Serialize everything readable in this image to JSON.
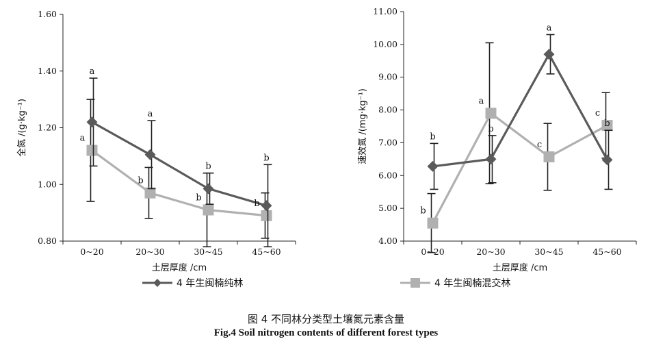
{
  "chart_data": [
    {
      "type": "line",
      "ylabel": "全氮 /(g·kg⁻¹)",
      "xlabel": "土层厚度 /cm",
      "categories": [
        "0~20",
        "20~30",
        "30~45",
        "45~60"
      ],
      "ylim": [
        0.8,
        1.6
      ],
      "yticks": [
        "0.80",
        "1.00",
        "1.20",
        "1.40",
        "1.60"
      ],
      "series": [
        {
          "name": "4 年生闽楠纯林",
          "color": "#5a5a5a",
          "marker": "diamond",
          "values": [
            1.22,
            1.105,
            0.985,
            0.925
          ],
          "err": [
            0.155,
            0.12,
            0.055,
            0.145
          ],
          "labels": [
            "a",
            "a",
            "b",
            "b"
          ]
        },
        {
          "name": "4 年生闽楠混交林",
          "color": "#b0b0b0",
          "marker": "square",
          "values": [
            1.12,
            0.97,
            0.91,
            0.89
          ],
          "err": [
            0.18,
            0.09,
            0.13,
            0.08
          ],
          "labels": [
            "a",
            "b",
            "b",
            "b"
          ]
        }
      ]
    },
    {
      "type": "line",
      "ylabel": "速效氮 /(mg·kg⁻¹)",
      "xlabel": "土层厚度 /cm",
      "categories": [
        "0~20",
        "20~30",
        "30~45",
        "45~60"
      ],
      "ylim": [
        4.0,
        11.0
      ],
      "yticks": [
        "4.00",
        "5.00",
        "6.00",
        "7.00",
        "8.00",
        "9.00",
        "10.00",
        "11.00"
      ],
      "series": [
        {
          "name": "4 年生闽楠纯林",
          "color": "#5a5a5a",
          "marker": "diamond",
          "values": [
            6.28,
            6.5,
            9.7,
            6.48
          ],
          "err": [
            0.7,
            0.72,
            0.6,
            0.9
          ],
          "labels": [
            "b",
            "b",
            "a",
            "b"
          ]
        },
        {
          "name": "4 年生闽楠混交林",
          "color": "#b0b0b0",
          "marker": "square",
          "values": [
            4.55,
            7.9,
            6.57,
            7.53
          ],
          "err": [
            0.9,
            2.15,
            1.02,
            1.0
          ],
          "labels": [
            "b",
            "a",
            "c",
            "c"
          ]
        }
      ]
    }
  ],
  "legend": {
    "pure": "4 年生闽楠纯林",
    "mixed": "4 年生闽楠混交林"
  },
  "caption": {
    "cn": "图 4    不同林分类型土壤氮元素含量",
    "en": "Fig.4     Soil nitrogen contents of different forest types"
  }
}
